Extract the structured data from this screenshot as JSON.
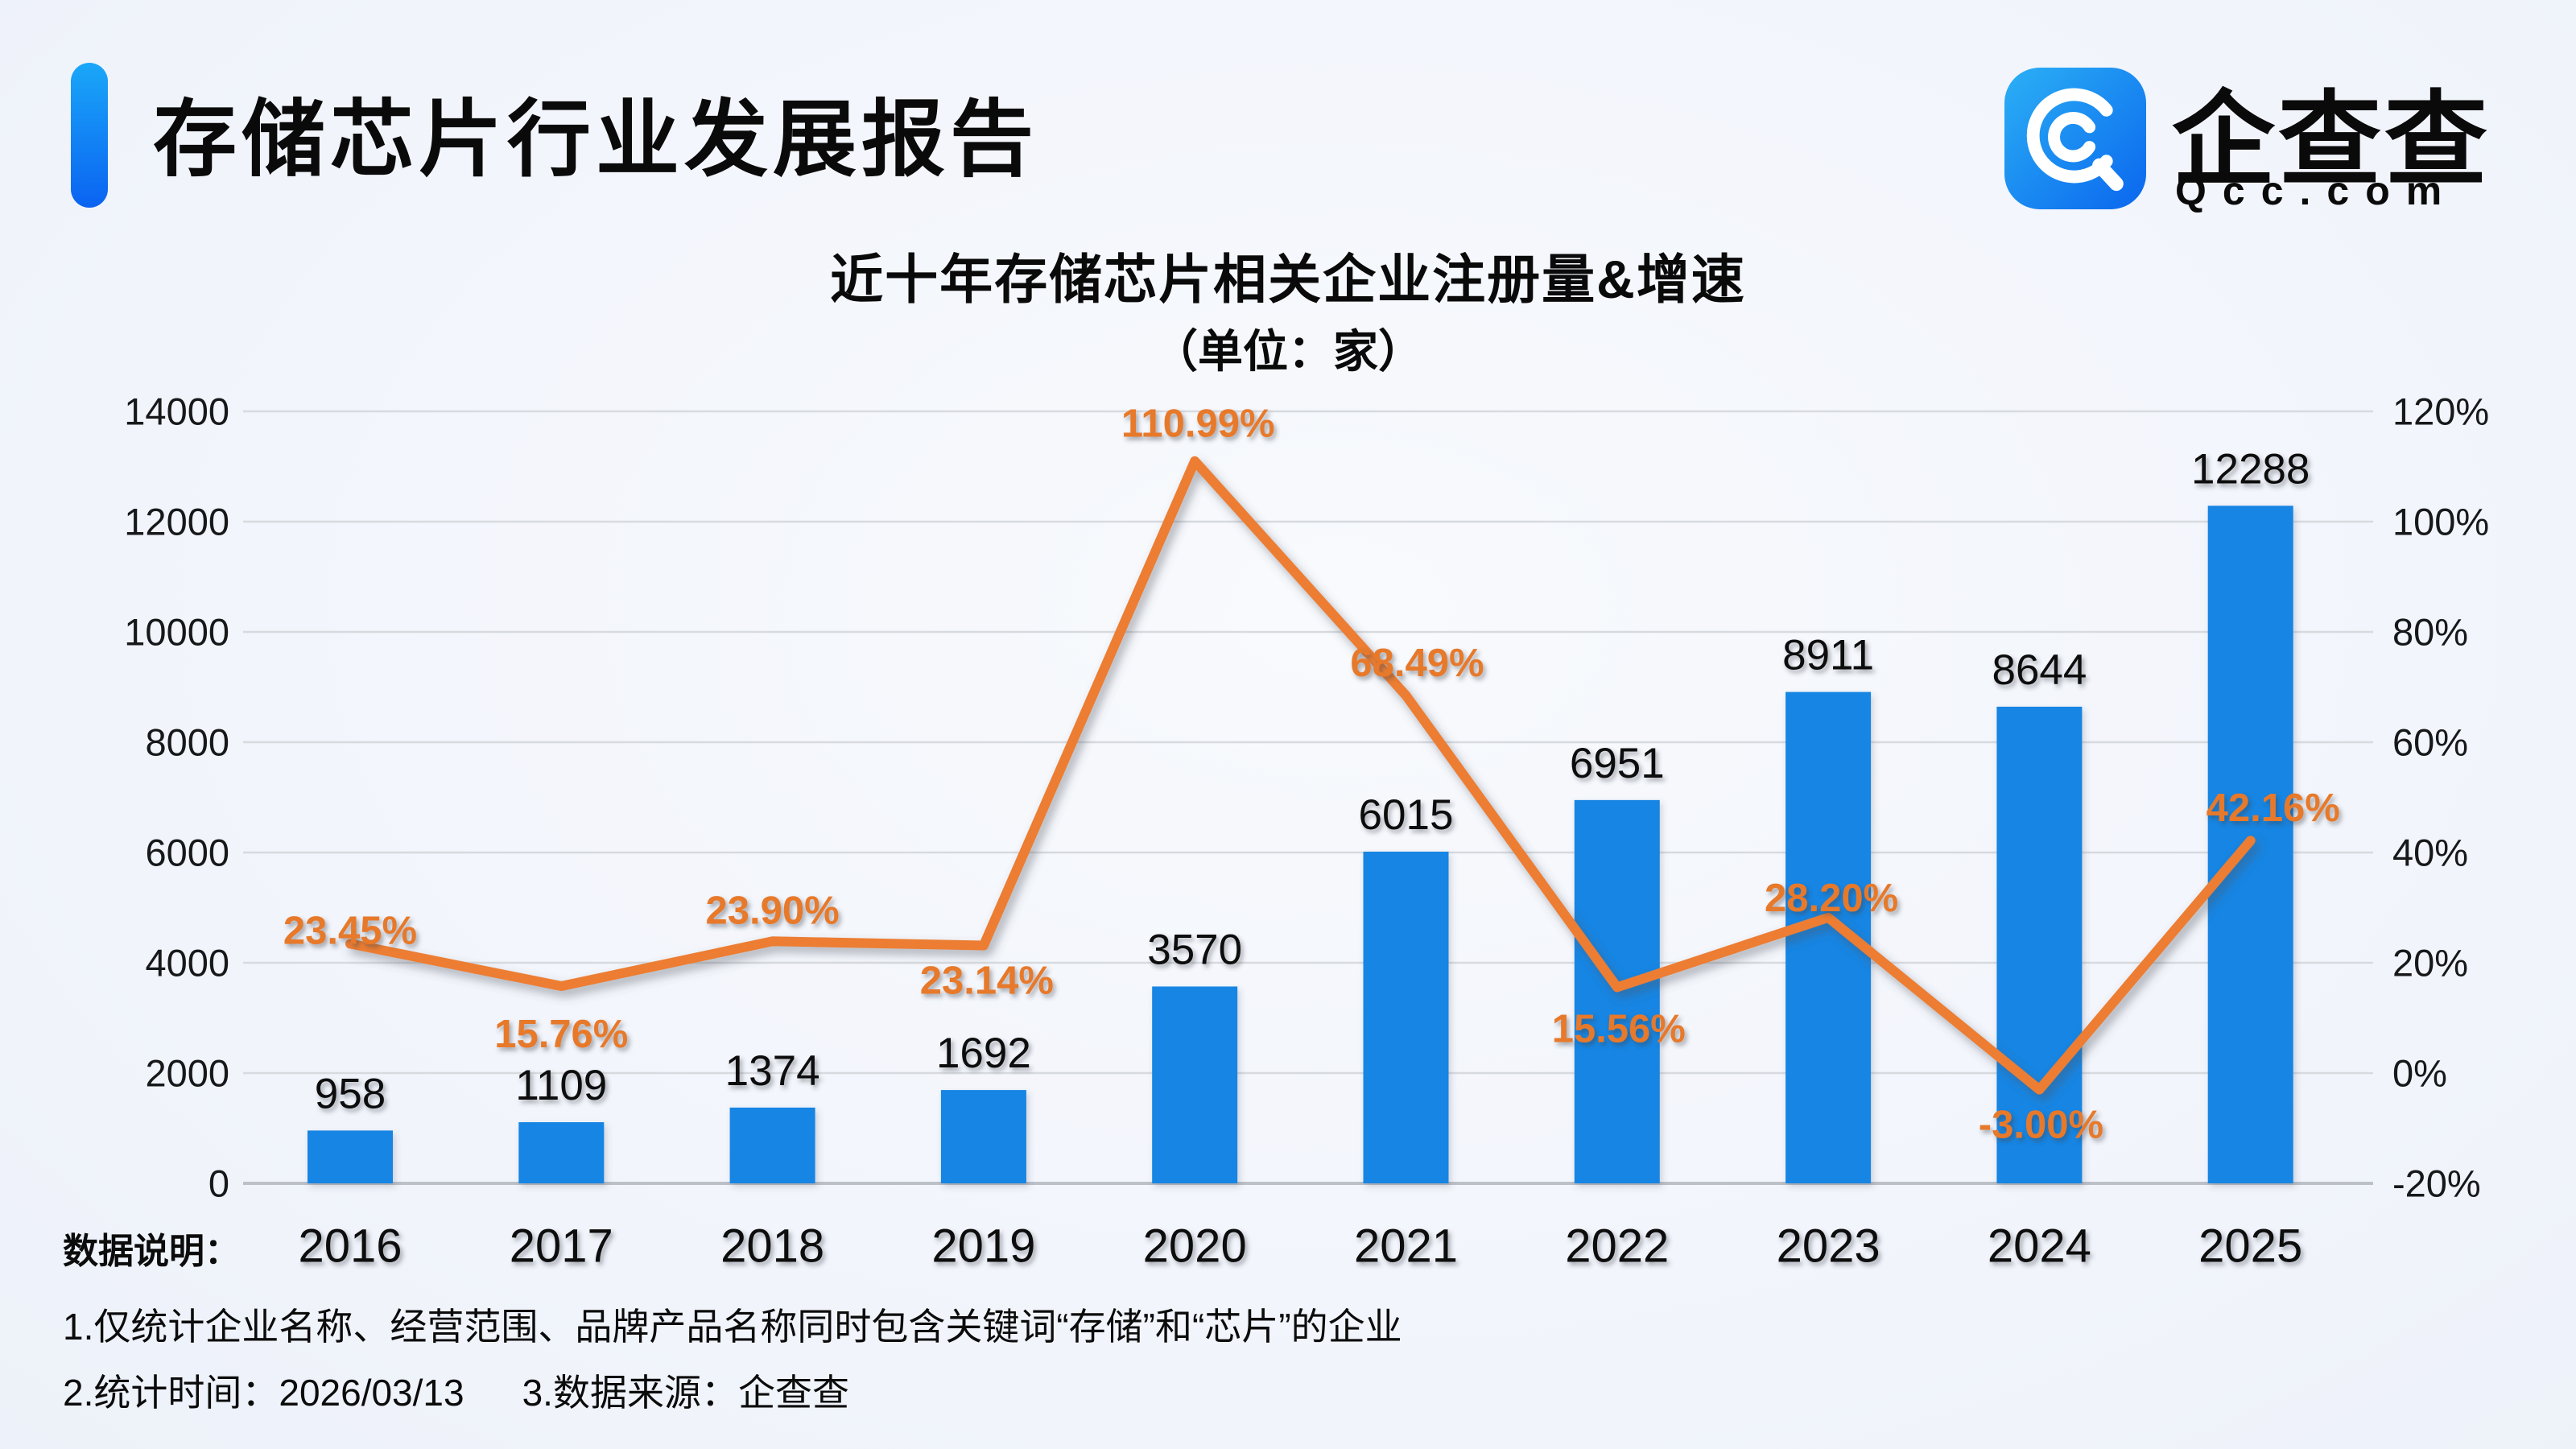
{
  "header": {
    "title": "存储芯片行业发展报告"
  },
  "logo": {
    "brand": "企查查",
    "domain": "Qcc.com",
    "icon": "qcc-logo-icon",
    "icon_color_top": "#2bb0f5",
    "icon_color_bottom": "#0a66ee"
  },
  "chart_data": {
    "type": "bar+line",
    "title": "近十年存储芯片相关企业注册量&增速",
    "subtitle": "（单位：家）",
    "categories": [
      "2016",
      "2017",
      "2018",
      "2019",
      "2020",
      "2021",
      "2022",
      "2023",
      "2024",
      "2025"
    ],
    "series": [
      {
        "name": "注册量",
        "type": "bar",
        "values": [
          958,
          1109,
          1374,
          1692,
          3570,
          6015,
          6951,
          8911,
          8644,
          12288
        ],
        "labels": [
          "958",
          "1109",
          "1374",
          "1692",
          "3570",
          "6015",
          "6951",
          "8911",
          "8644",
          "12288"
        ],
        "color": "#1585e3"
      },
      {
        "name": "增速",
        "type": "line",
        "values": [
          23.45,
          15.76,
          23.9,
          23.14,
          110.99,
          68.49,
          15.56,
          28.2,
          -3.0,
          42.16
        ],
        "labels": [
          "23.45%",
          "15.76%",
          "23.90%",
          "23.14%",
          "110.99%",
          "68.49%",
          "15.56%",
          "28.20%",
          "-3.00%",
          "42.16%"
        ],
        "color": "#ec7d30",
        "label_offsets": [
          [
            0,
            -16
          ],
          [
            0,
            60
          ],
          [
            0,
            -38
          ],
          [
            4,
            44
          ],
          [
            4,
            -46
          ],
          [
            14,
            -40
          ],
          [
            2,
            52
          ],
          [
            4,
            -24
          ],
          [
            2,
            44
          ],
          [
            28,
            -40
          ]
        ]
      }
    ],
    "left_axis": {
      "ticks": [
        "14000",
        "12000",
        "10000",
        "8000",
        "6000",
        "4000",
        "2000",
        "0"
      ],
      "min": 0,
      "max": 14000
    },
    "right_axis": {
      "ticks": [
        "120%",
        "100%",
        "80%",
        "60%",
        "40%",
        "20%",
        "0%",
        "-20%"
      ],
      "min": -20,
      "max": 120
    },
    "grid": true,
    "grid_color": "#d7dade",
    "baseline_color": "#bcc0c7",
    "legend": "none"
  },
  "footer": {
    "heading": "数据说明：",
    "note1": "1.仅统计企业名称、经营范围、品牌产品名称同时包含关键词“存储”和“芯片”的企业",
    "note2": "2.统计时间：2026/03/13",
    "note3": "3.数据来源：企查查"
  }
}
